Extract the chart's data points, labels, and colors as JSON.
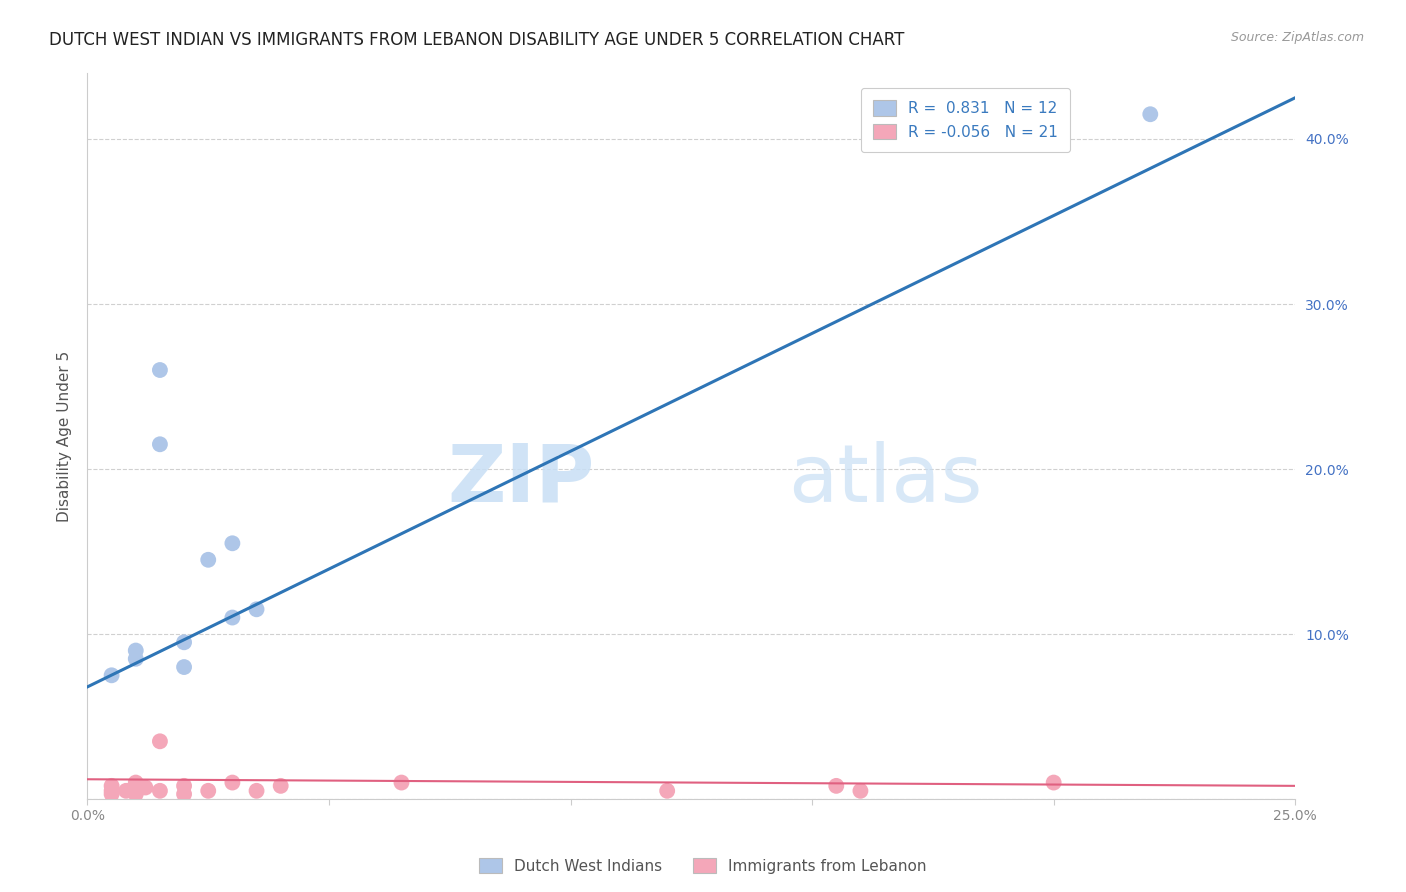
{
  "title": "DUTCH WEST INDIAN VS IMMIGRANTS FROM LEBANON DISABILITY AGE UNDER 5 CORRELATION CHART",
  "source": "Source: ZipAtlas.com",
  "ylabel": "Disability Age Under 5",
  "xlim": [
    0.0,
    0.25
  ],
  "ylim": [
    0.0,
    0.44
  ],
  "xticks": [
    0.0,
    0.05,
    0.1,
    0.15,
    0.2,
    0.25
  ],
  "xticklabels": [
    "0.0%",
    "",
    "",
    "",
    "",
    "25.0%"
  ],
  "yticks": [
    0.0,
    0.1,
    0.2,
    0.3,
    0.4
  ],
  "yticklabels_right": [
    "",
    "10.0%",
    "20.0%",
    "30.0%",
    "40.0%"
  ],
  "blue_label": "Dutch West Indians",
  "pink_label": "Immigrants from Lebanon",
  "blue_R": 0.831,
  "blue_N": 12,
  "pink_R": -0.056,
  "pink_N": 21,
  "blue_color": "#aec6e8",
  "pink_color": "#f4a7b9",
  "blue_line_color": "#2e75b6",
  "pink_line_color": "#e06080",
  "blue_scatter_x": [
    0.005,
    0.01,
    0.01,
    0.015,
    0.015,
    0.02,
    0.02,
    0.025,
    0.03,
    0.03,
    0.035,
    0.22
  ],
  "blue_scatter_y": [
    0.075,
    0.09,
    0.085,
    0.26,
    0.215,
    0.08,
    0.095,
    0.145,
    0.155,
    0.11,
    0.115,
    0.415
  ],
  "pink_scatter_x": [
    0.005,
    0.005,
    0.005,
    0.008,
    0.01,
    0.01,
    0.01,
    0.012,
    0.015,
    0.015,
    0.02,
    0.02,
    0.025,
    0.03,
    0.035,
    0.04,
    0.065,
    0.12,
    0.155,
    0.16,
    0.2
  ],
  "pink_scatter_y": [
    0.005,
    0.008,
    0.003,
    0.005,
    0.01,
    0.005,
    0.003,
    0.007,
    0.035,
    0.005,
    0.008,
    0.003,
    0.005,
    0.01,
    0.005,
    0.008,
    0.01,
    0.005,
    0.008,
    0.005,
    0.01
  ],
  "blue_line_x": [
    0.0,
    0.25
  ],
  "blue_line_y": [
    0.068,
    0.425
  ],
  "pink_line_x": [
    0.0,
    0.25
  ],
  "pink_line_y": [
    0.012,
    0.008
  ],
  "watermark_zip": "ZIP",
  "watermark_atlas": "atlas",
  "background_color": "#ffffff",
  "title_fontsize": 12,
  "axis_label_fontsize": 11,
  "tick_fontsize": 10,
  "legend_fontsize": 11,
  "grid_color": "#d0d0d0",
  "tick_color_right": "#4472c4",
  "tick_color_bottom": "#888888"
}
